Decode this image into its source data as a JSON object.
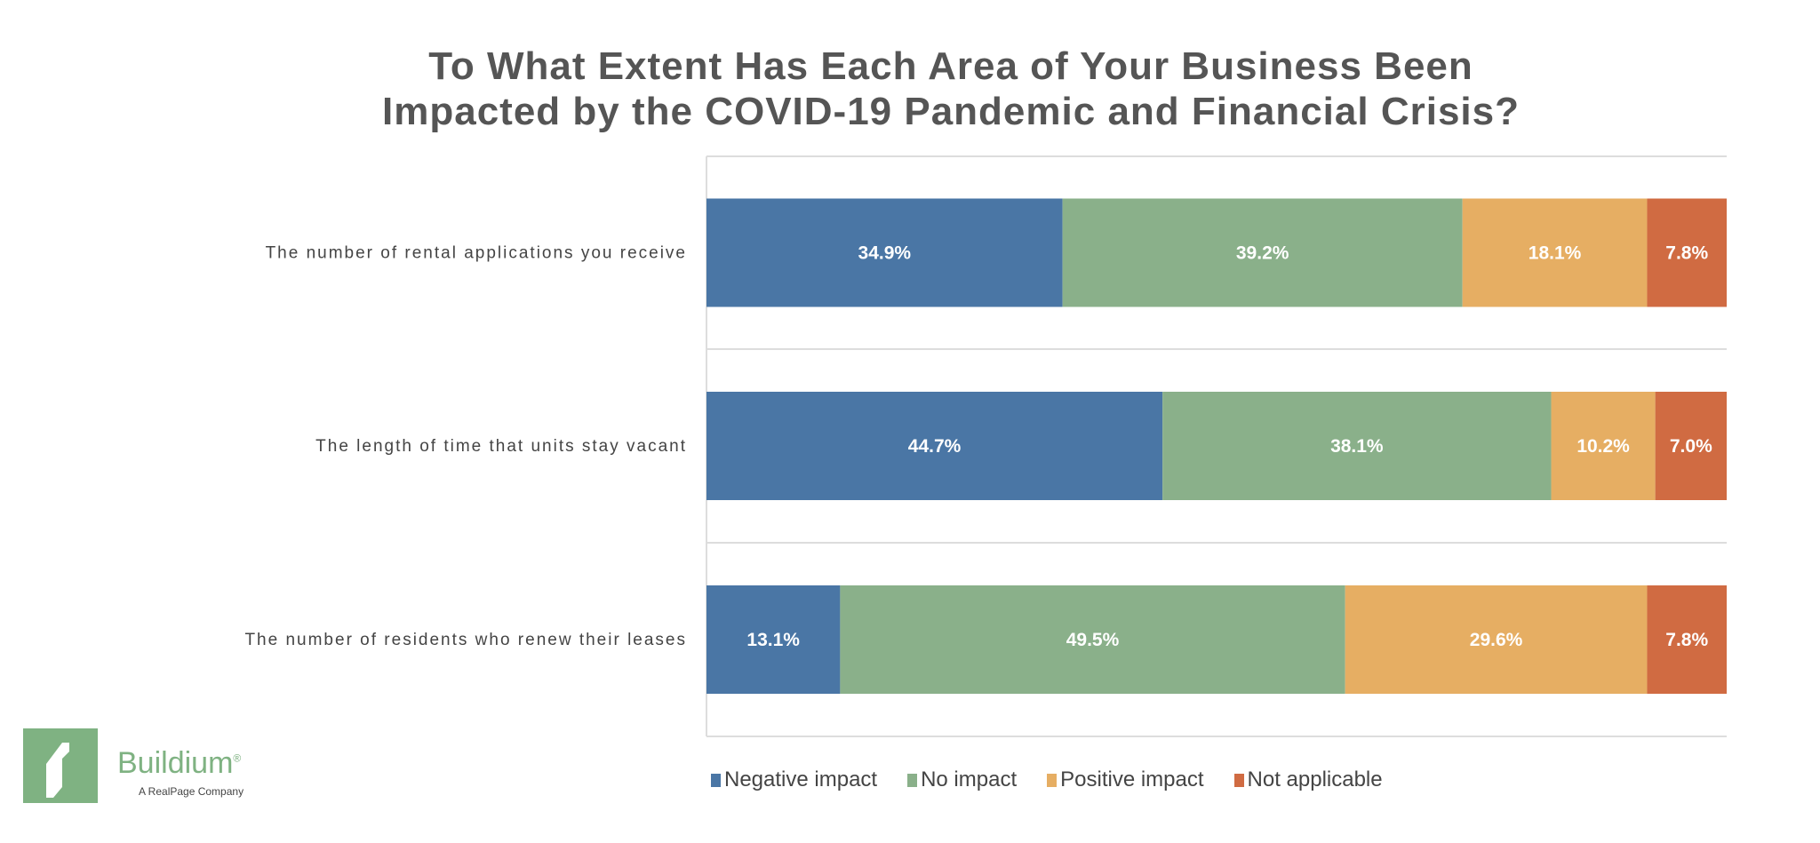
{
  "chart_data": {
    "type": "bar",
    "orientation": "horizontal",
    "stacked": true,
    "title": [
      "To What Extent Has Each Area of Your Business Been",
      "Impacted by the COVID-19 Pandemic and Financial Crisis?"
    ],
    "categories": [
      "The number of rental applications you receive",
      "The length of time that units stay vacant",
      "The number of residents who renew their leases"
    ],
    "series": [
      {
        "name": "Negative impact",
        "color": "#4a76a5",
        "values": [
          34.9,
          44.7,
          13.1
        ],
        "labels": [
          "34.9%",
          "44.7%",
          "13.1%"
        ]
      },
      {
        "name": "No impact",
        "color": "#8ab08a",
        "values": [
          39.2,
          38.1,
          49.5
        ],
        "labels": [
          "39.2%",
          "38.1%",
          "49.5%"
        ]
      },
      {
        "name": "Positive impact",
        "color": "#e6ae63",
        "values": [
          18.1,
          10.2,
          29.6
        ],
        "labels": [
          "18.1%",
          "10.2%",
          "29.6%"
        ]
      },
      {
        "name": "Not applicable",
        "color": "#d06b42",
        "values": [
          7.8,
          7.0,
          7.8
        ],
        "labels": [
          "7.8%",
          "7.0%",
          "7.8%"
        ]
      }
    ],
    "xlim": [
      0,
      100
    ],
    "grid": true,
    "legend": "bottom"
  },
  "logo": {
    "name": "Buildium",
    "tagline": "A RealPage Company",
    "mark": "®"
  }
}
